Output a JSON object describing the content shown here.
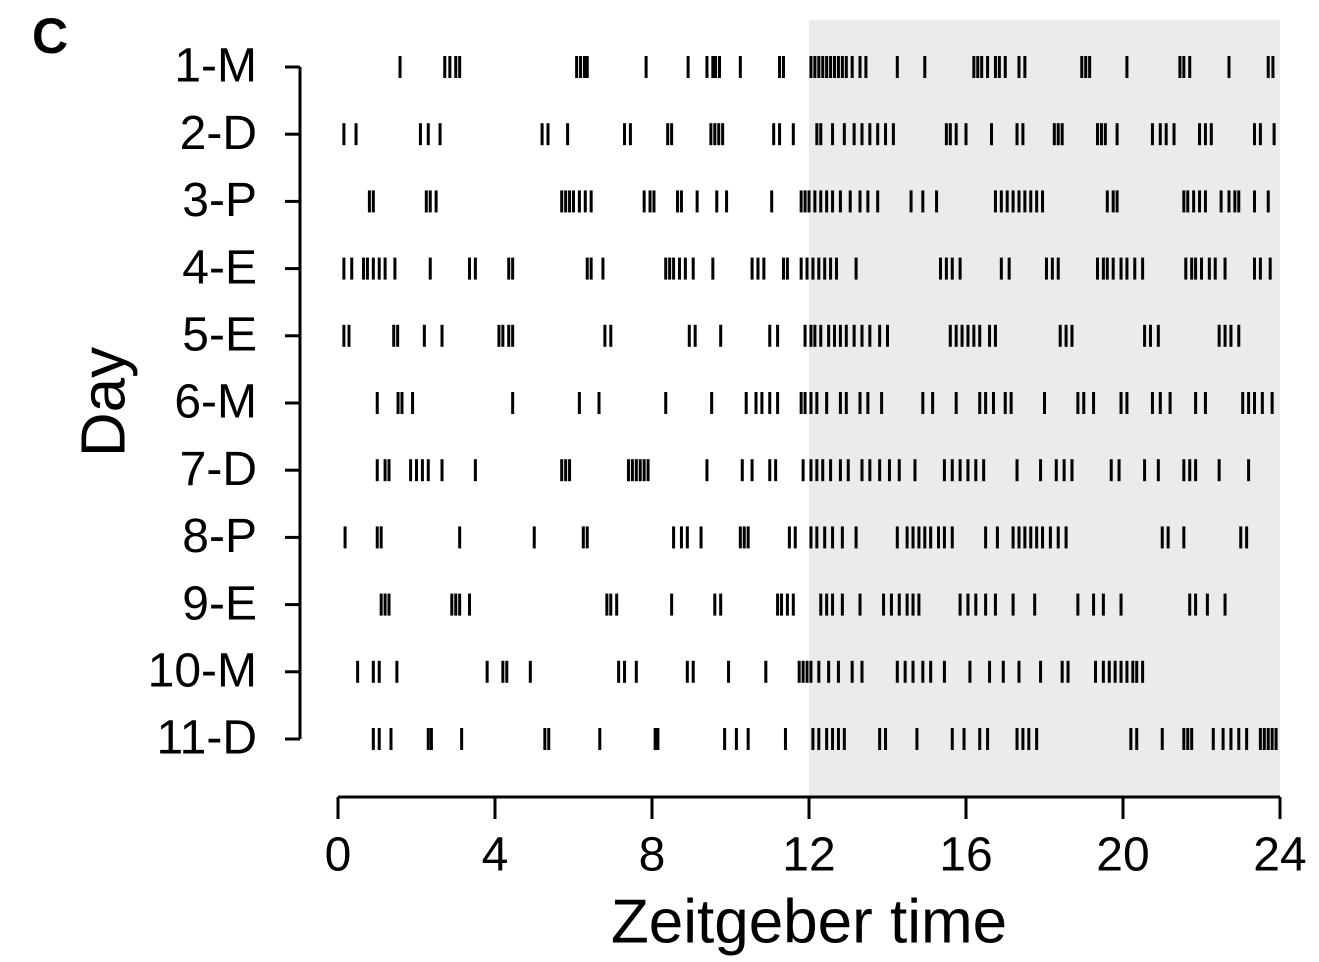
{
  "chart_data": {
    "type": "raster",
    "panel_label": "C",
    "xlabel": "Zeitgeber time",
    "ylabel": "Day",
    "xlim": [
      0,
      24
    ],
    "xticks": [
      0,
      4,
      8,
      12,
      16,
      20,
      24
    ],
    "shade": [
      12,
      24
    ],
    "shade_color": "#ebebeb",
    "color": "#000000",
    "categories": [
      "1-M",
      "2-D",
      "3-P",
      "4-E",
      "5-E",
      "6-M",
      "7-D",
      "8-P",
      "9-E",
      "10-M",
      "11-D"
    ],
    "events": [
      [
        1.58,
        2.72,
        2.85,
        3.0,
        3.1,
        6.08,
        6.18,
        6.28,
        6.35,
        7.85,
        8.92,
        9.4,
        9.55,
        9.62,
        9.72,
        10.25,
        11.25,
        11.35,
        12.05,
        12.15,
        12.25,
        12.35,
        12.45,
        12.55,
        12.65,
        12.75,
        12.85,
        12.95,
        13.1,
        13.3,
        13.45,
        14.25,
        14.95,
        16.2,
        16.3,
        16.4,
        16.55,
        16.75,
        16.85,
        17.0,
        17.35,
        17.5,
        18.95,
        19.05,
        19.15,
        20.1,
        21.45,
        21.55,
        21.7,
        22.7,
        23.7,
        23.82
      ],
      [
        0.15,
        0.46,
        2.1,
        2.3,
        2.6,
        5.2,
        5.35,
        5.85,
        7.3,
        7.45,
        8.4,
        8.5,
        9.5,
        9.6,
        9.7,
        9.8,
        11.1,
        11.25,
        11.6,
        12.2,
        12.3,
        12.6,
        12.9,
        13.15,
        13.35,
        13.55,
        13.75,
        13.95,
        14.15,
        15.5,
        15.6,
        15.75,
        16.0,
        16.65,
        17.3,
        17.45,
        18.25,
        18.35,
        18.45,
        19.35,
        19.45,
        19.55,
        19.85,
        20.75,
        20.95,
        21.1,
        21.3,
        21.95,
        22.1,
        22.25,
        23.35,
        23.5,
        23.85
      ],
      [
        0.8,
        0.9,
        2.25,
        2.35,
        2.5,
        5.7,
        5.8,
        5.9,
        6.0,
        6.15,
        6.3,
        6.45,
        7.8,
        7.95,
        8.05,
        8.65,
        8.75,
        9.15,
        9.65,
        9.9,
        11.05,
        11.8,
        11.9,
        12.0,
        12.15,
        12.3,
        12.45,
        12.6,
        12.8,
        13.05,
        13.3,
        13.5,
        13.75,
        14.6,
        14.9,
        15.25,
        16.75,
        16.9,
        17.05,
        17.2,
        17.35,
        17.5,
        17.65,
        17.8,
        17.95,
        19.6,
        19.75,
        19.85,
        21.55,
        21.65,
        21.8,
        21.95,
        22.1,
        22.5,
        22.7,
        22.85,
        22.95,
        23.35,
        23.7
      ],
      [
        0.15,
        0.35,
        0.65,
        0.75,
        0.9,
        1.05,
        1.2,
        1.45,
        2.35,
        3.35,
        3.5,
        4.35,
        4.45,
        6.35,
        6.45,
        6.75,
        8.35,
        8.45,
        8.55,
        8.7,
        8.85,
        9.05,
        9.55,
        10.55,
        10.7,
        10.85,
        11.35,
        11.45,
        11.8,
        11.95,
        12.1,
        12.25,
        12.4,
        12.55,
        12.7,
        13.2,
        15.35,
        15.5,
        15.65,
        15.85,
        16.9,
        17.1,
        18.05,
        18.2,
        18.35,
        19.35,
        19.5,
        19.6,
        19.75,
        19.95,
        20.1,
        20.3,
        20.5,
        21.6,
        21.75,
        21.85,
        22.0,
        22.2,
        22.35,
        22.6,
        23.35,
        23.5,
        23.75
      ],
      [
        0.15,
        0.28,
        1.42,
        1.52,
        2.2,
        2.65,
        4.1,
        4.2,
        4.35,
        4.45,
        6.8,
        6.95,
        8.95,
        9.1,
        9.75,
        11.0,
        11.2,
        11.9,
        12.05,
        12.15,
        12.3,
        12.5,
        12.65,
        12.8,
        12.95,
        13.15,
        13.35,
        13.55,
        13.8,
        14.0,
        15.6,
        15.75,
        15.9,
        16.05,
        16.2,
        16.35,
        16.6,
        16.75,
        18.4,
        18.55,
        18.7,
        20.55,
        20.7,
        20.9,
        22.45,
        22.6,
        22.75,
        22.95
      ],
      [
        1.0,
        1.53,
        1.63,
        1.9,
        4.45,
        6.15,
        6.65,
        8.35,
        9.52,
        10.4,
        10.65,
        10.8,
        11.0,
        11.2,
        11.8,
        11.9,
        12.05,
        12.2,
        12.45,
        12.8,
        12.95,
        13.3,
        13.5,
        13.85,
        14.9,
        15.15,
        15.75,
        16.35,
        16.5,
        16.7,
        17.0,
        17.15,
        18.0,
        18.85,
        19.0,
        19.25,
        19.95,
        20.1,
        20.75,
        20.95,
        21.2,
        21.85,
        22.1,
        23.05,
        23.2,
        23.35,
        23.55,
        23.8
      ],
      [
        1.0,
        1.2,
        1.3,
        1.85,
        2.0,
        2.15,
        2.3,
        2.65,
        3.5,
        5.7,
        5.8,
        5.9,
        7.4,
        7.5,
        7.6,
        7.7,
        7.8,
        7.9,
        9.4,
        10.3,
        10.55,
        11.0,
        11.15,
        11.85,
        12.05,
        12.2,
        12.35,
        12.55,
        12.8,
        13.0,
        13.35,
        13.55,
        13.8,
        14.05,
        14.3,
        14.7,
        15.45,
        15.65,
        15.85,
        16.05,
        16.25,
        16.45,
        17.3,
        17.9,
        18.3,
        18.5,
        18.7,
        19.7,
        19.9,
        20.55,
        20.9,
        21.55,
        21.7,
        21.85,
        22.45,
        23.2
      ],
      [
        0.18,
        1.0,
        1.1,
        3.1,
        5.0,
        6.25,
        6.35,
        8.55,
        8.75,
        8.9,
        9.25,
        10.25,
        10.35,
        10.45,
        11.5,
        11.65,
        12.05,
        12.2,
        12.4,
        12.6,
        12.85,
        13.2,
        14.25,
        14.5,
        14.65,
        14.8,
        14.95,
        15.1,
        15.3,
        15.45,
        15.65,
        16.5,
        16.8,
        17.2,
        17.35,
        17.5,
        17.65,
        17.8,
        17.95,
        18.15,
        18.35,
        18.55,
        21.0,
        21.15,
        21.55,
        23.0,
        23.15
      ],
      [
        1.1,
        1.2,
        1.3,
        2.9,
        3.0,
        3.1,
        3.35,
        6.85,
        6.95,
        7.1,
        8.5,
        9.6,
        9.75,
        11.2,
        11.3,
        11.45,
        11.6,
        12.3,
        12.45,
        12.6,
        12.85,
        13.3,
        13.9,
        14.1,
        14.3,
        14.5,
        14.65,
        14.8,
        15.85,
        16.05,
        16.25,
        16.5,
        16.75,
        17.2,
        17.75,
        18.85,
        19.25,
        19.5,
        19.95,
        21.7,
        21.85,
        22.15,
        22.6
      ],
      [
        0.5,
        0.9,
        1.05,
        1.5,
        3.8,
        4.2,
        4.3,
        4.9,
        7.15,
        7.3,
        7.6,
        8.9,
        9.05,
        9.95,
        10.9,
        11.75,
        11.85,
        11.95,
        12.05,
        12.25,
        12.5,
        12.75,
        13.1,
        13.35,
        14.25,
        14.45,
        14.65,
        14.9,
        15.1,
        15.45,
        16.1,
        16.6,
        16.95,
        17.35,
        17.9,
        18.45,
        18.6,
        19.3,
        19.5,
        19.65,
        19.8,
        19.95,
        20.1,
        20.25,
        20.35,
        20.5
      ],
      [
        0.9,
        1.05,
        1.35,
        2.3,
        2.38,
        3.15,
        5.27,
        5.37,
        6.67,
        8.08,
        8.15,
        9.85,
        10.15,
        10.45,
        11.4,
        12.1,
        12.25,
        12.45,
        12.6,
        12.75,
        12.9,
        13.8,
        13.95,
        14.75,
        15.65,
        15.95,
        16.35,
        16.55,
        17.3,
        17.45,
        17.6,
        17.8,
        20.2,
        20.35,
        21.0,
        21.55,
        21.65,
        21.75,
        22.3,
        22.55,
        22.75,
        22.95,
        23.15,
        23.5,
        23.6,
        23.7,
        23.8,
        23.9
      ]
    ]
  }
}
